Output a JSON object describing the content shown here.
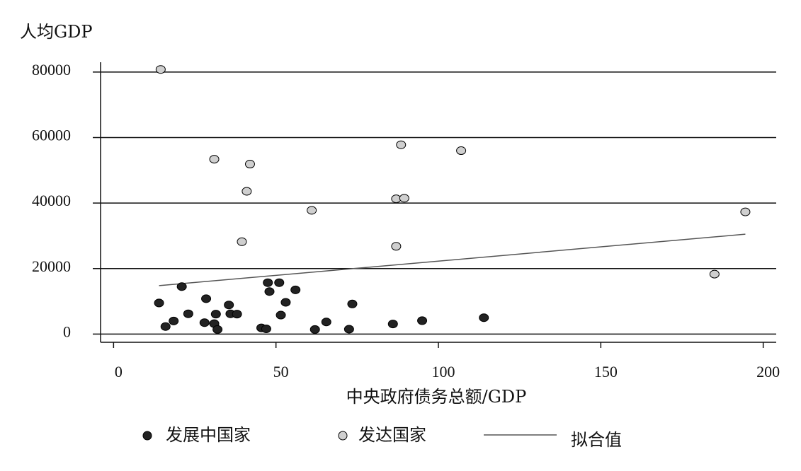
{
  "chart_data": {
    "type": "scatter",
    "title": "",
    "ylabel": "人均GDP",
    "xlabel": "中央政府债务总额/GDP",
    "xlim": [
      -4,
      204
    ],
    "ylim": [
      -2500,
      83000
    ],
    "x_ticks": [
      0,
      50,
      100,
      150,
      200
    ],
    "y_ticks": [
      0,
      20000,
      40000,
      60000,
      80000
    ],
    "grid": "horizontal",
    "legend_position": "bottom",
    "colors": {
      "developing": "#222222",
      "developed": "#cfcfcf",
      "fit": "#555555",
      "grid": "#111111"
    },
    "series": [
      {
        "name": "发展中国家",
        "marker": "filled-dark-circle",
        "points": [
          [
            14,
            9500
          ],
          [
            16,
            2300
          ],
          [
            18.5,
            4000
          ],
          [
            21,
            14500
          ],
          [
            23,
            6200
          ],
          [
            28,
            3500
          ],
          [
            28.5,
            10800
          ],
          [
            31,
            3200
          ],
          [
            31.5,
            6100
          ],
          [
            32,
            1400
          ],
          [
            35.5,
            8900
          ],
          [
            36,
            6200
          ],
          [
            38,
            6100
          ],
          [
            45.5,
            1900
          ],
          [
            47,
            1600
          ],
          [
            47.5,
            15700
          ],
          [
            48,
            13000
          ],
          [
            51,
            15700
          ],
          [
            51.5,
            5800
          ],
          [
            53,
            9700
          ],
          [
            56,
            13500
          ],
          [
            62,
            1400
          ],
          [
            65.5,
            3700
          ],
          [
            72.5,
            1500
          ],
          [
            73.5,
            9200
          ],
          [
            86,
            3100
          ],
          [
            95,
            4100
          ],
          [
            114,
            5000
          ]
        ]
      },
      {
        "name": "发达国家",
        "marker": "light-gray-circle",
        "points": [
          [
            14.5,
            80800
          ],
          [
            31,
            53400
          ],
          [
            39.5,
            28200
          ],
          [
            41,
            43600
          ],
          [
            42,
            51900
          ],
          [
            61,
            37800
          ],
          [
            87,
            41300
          ],
          [
            87,
            26800
          ],
          [
            88.5,
            57800
          ],
          [
            89.5,
            41500
          ],
          [
            107,
            56000
          ],
          [
            185,
            18300
          ],
          [
            194.5,
            37300
          ]
        ]
      },
      {
        "name": "拟合值",
        "type": "line",
        "points": [
          [
            14,
            14800
          ],
          [
            194.5,
            30500
          ]
        ]
      }
    ]
  }
}
